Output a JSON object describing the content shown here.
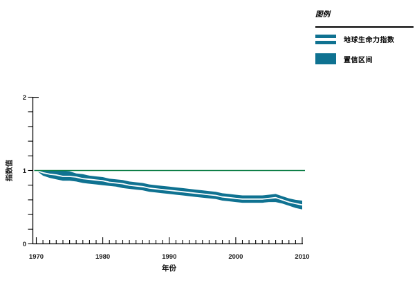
{
  "colors": {
    "band": "#0f7291",
    "index_line": "#ffffff",
    "baseline": "#0b7d45",
    "axis": "#000000",
    "text": "#1a1a1a"
  },
  "legend": {
    "title": "图例",
    "items": [
      {
        "label": "地球生命力指数",
        "swatch": "line-band"
      },
      {
        "label": "置信区间",
        "swatch": "fill"
      }
    ]
  },
  "chart_data": {
    "type": "line",
    "title": "",
    "xlabel": "年份",
    "ylabel": "指数值",
    "xlim": [
      1970,
      2010
    ],
    "ylim": [
      0,
      2
    ],
    "x_major_ticks": [
      1970,
      1980,
      1990,
      2000,
      2010
    ],
    "x_tick_labels": [
      "1970",
      "1980",
      "1990",
      "2000",
      "2010"
    ],
    "x_minor_tick_interval": 1,
    "y_major_ticks": [
      0,
      1,
      2
    ],
    "y_tick_labels": [
      "0",
      "1",
      "2"
    ],
    "y_minor_tick_interval": 0.2,
    "baseline_y": 1.0,
    "grid": false,
    "legend_position": "top-right",
    "years": [
      1970,
      1971,
      1972,
      1973,
      1974,
      1975,
      1976,
      1977,
      1978,
      1979,
      1980,
      1981,
      1982,
      1983,
      1984,
      1985,
      1986,
      1987,
      1988,
      1989,
      1990,
      1991,
      1992,
      1993,
      1994,
      1995,
      1996,
      1997,
      1998,
      1999,
      2000,
      2001,
      2002,
      2003,
      2004,
      2005,
      2006,
      2007,
      2008,
      2009,
      2010
    ],
    "series": [
      {
        "name": "地球生命力指数",
        "values": [
          1.0,
          0.97,
          0.95,
          0.94,
          0.92,
          0.92,
          0.91,
          0.89,
          0.88,
          0.87,
          0.86,
          0.84,
          0.83,
          0.82,
          0.8,
          0.79,
          0.78,
          0.76,
          0.75,
          0.74,
          0.73,
          0.72,
          0.71,
          0.7,
          0.69,
          0.68,
          0.67,
          0.66,
          0.64,
          0.63,
          0.62,
          0.61,
          0.61,
          0.61,
          0.61,
          0.62,
          0.63,
          0.6,
          0.57,
          0.55,
          0.53
        ]
      },
      {
        "name": "置信区间上限",
        "values": [
          1.0,
          1.0,
          1.0,
          1.0,
          1.0,
          0.99,
          0.96,
          0.95,
          0.93,
          0.92,
          0.91,
          0.89,
          0.88,
          0.87,
          0.85,
          0.84,
          0.83,
          0.81,
          0.8,
          0.79,
          0.78,
          0.77,
          0.76,
          0.75,
          0.74,
          0.73,
          0.72,
          0.71,
          0.69,
          0.68,
          0.67,
          0.66,
          0.66,
          0.66,
          0.66,
          0.67,
          0.68,
          0.65,
          0.62,
          0.6,
          0.59
        ]
      },
      {
        "name": "置信区间下限",
        "values": [
          1.0,
          0.93,
          0.9,
          0.88,
          0.86,
          0.86,
          0.85,
          0.83,
          0.82,
          0.81,
          0.8,
          0.79,
          0.78,
          0.76,
          0.75,
          0.74,
          0.73,
          0.71,
          0.7,
          0.69,
          0.68,
          0.67,
          0.66,
          0.65,
          0.64,
          0.63,
          0.62,
          0.61,
          0.59,
          0.58,
          0.57,
          0.56,
          0.56,
          0.56,
          0.56,
          0.57,
          0.57,
          0.55,
          0.52,
          0.49,
          0.47
        ]
      }
    ]
  }
}
